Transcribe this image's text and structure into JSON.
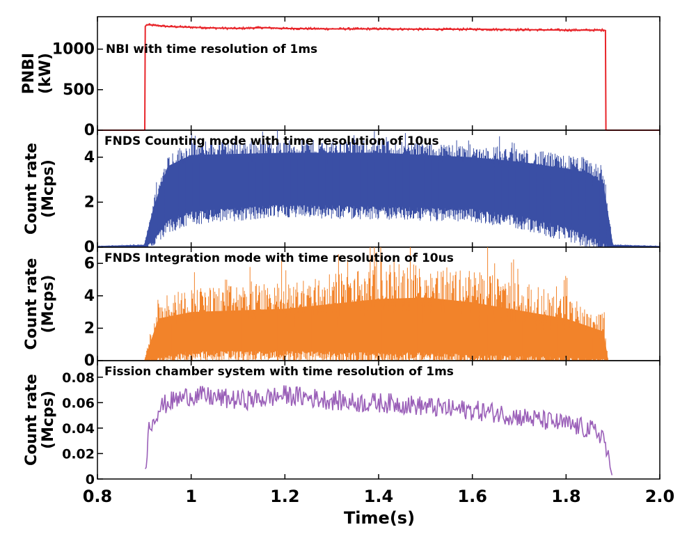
{
  "chart_data": {
    "type": "line",
    "xlabel": "Time(s)",
    "xlim": [
      0.8,
      2.0
    ],
    "xticks": [
      "0.8",
      "1",
      "1.2",
      "1.4",
      "1.6",
      "1.8",
      "2.0"
    ],
    "xtick_values": [
      0.8,
      1.0,
      1.2,
      1.4,
      1.6,
      1.8,
      2.0
    ],
    "panels": [
      {
        "title": "NBI with time resolution of 1ms",
        "ylabel": [
          "PNBI",
          "(kW)"
        ],
        "ylim": [
          0,
          1400
        ],
        "yticks": [
          "0",
          "500",
          "1000"
        ],
        "ytick_values": [
          0,
          500,
          1000
        ],
        "color": "#e8252a",
        "style": "step",
        "x": [
          0.8,
          0.901,
          0.902,
          0.905,
          0.91,
          0.95,
          1.0,
          1.05,
          1.1,
          1.15,
          1.2,
          1.3,
          1.4,
          1.5,
          1.6,
          1.7,
          1.8,
          1.88,
          1.884,
          1.885,
          2.0
        ],
        "values": [
          0,
          0,
          1280,
          1300,
          1300,
          1280,
          1270,
          1260,
          1255,
          1265,
          1255,
          1250,
          1250,
          1245,
          1245,
          1240,
          1235,
          1235,
          1230,
          0,
          0
        ]
      },
      {
        "title": "FNDS Counting mode with time resolution of 10us",
        "ylabel": [
          "Count rate",
          "(Mcps)"
        ],
        "ylim": [
          0,
          5.2
        ],
        "yticks": [
          "0",
          "2",
          "4"
        ],
        "ytick_values": [
          0,
          2,
          4
        ],
        "color": "#3a4fa5",
        "style": "band",
        "x": [
          0.8,
          0.9,
          0.92,
          0.95,
          1.0,
          1.2,
          1.4,
          1.6,
          1.7,
          1.8,
          1.85,
          1.88,
          1.9,
          2.0
        ],
        "upper": [
          0.05,
          0.1,
          1.8,
          3.6,
          4.1,
          4.2,
          4.2,
          4.0,
          3.8,
          3.5,
          3.3,
          2.8,
          0.1,
          0.05
        ],
        "lower": [
          0,
          0,
          0.3,
          1.2,
          1.6,
          1.9,
          1.8,
          1.7,
          1.4,
          0.9,
          0.5,
          0.2,
          0,
          0
        ]
      },
      {
        "title": "FNDS Integration mode with time resolution of 10us",
        "ylabel": [
          "Count rate",
          "(Mcps)"
        ],
        "ylim": [
          0,
          7
        ],
        "yticks": [
          "0",
          "2",
          "4",
          "6"
        ],
        "ytick_values": [
          0,
          2,
          4,
          6
        ],
        "color": "#f2832a",
        "style": "band",
        "x": [
          0.8,
          0.9,
          0.93,
          1.0,
          1.2,
          1.4,
          1.5,
          1.6,
          1.8,
          1.88,
          1.89,
          2.0
        ],
        "upper": [
          0,
          0,
          2.6,
          3.0,
          3.2,
          3.8,
          3.9,
          3.6,
          2.6,
          1.8,
          0,
          0
        ],
        "lower": [
          0,
          0,
          0.2,
          0.6,
          0.6,
          0.5,
          0.5,
          0.4,
          0.2,
          0.1,
          0,
          0
        ]
      },
      {
        "title": "Fission chamber system with time resolution of 1ms",
        "ylabel": [
          "Count rate",
          "(Mcps)"
        ],
        "ylim": [
          0,
          0.093
        ],
        "yticks": [
          "0",
          "0.02",
          "0.04",
          "0.06",
          "0.08"
        ],
        "ytick_values": [
          0,
          0.02,
          0.04,
          0.06,
          0.08
        ],
        "color": "#9a5fb8",
        "style": "noisy",
        "x": [
          0.8,
          0.9,
          0.91,
          0.93,
          0.95,
          1.0,
          1.05,
          1.1,
          1.15,
          1.2,
          1.25,
          1.3,
          1.35,
          1.4,
          1.45,
          1.5,
          1.55,
          1.6,
          1.65,
          1.7,
          1.75,
          1.8,
          1.85,
          1.88,
          1.89,
          1.9,
          2.0
        ],
        "values": [
          null,
          0,
          0.04,
          0.055,
          0.06,
          0.066,
          0.064,
          0.062,
          0.063,
          0.066,
          0.064,
          0.062,
          0.06,
          0.06,
          0.059,
          0.057,
          0.055,
          0.054,
          0.052,
          0.049,
          0.046,
          0.043,
          0.039,
          0.034,
          0.015,
          0,
          null
        ]
      }
    ]
  }
}
